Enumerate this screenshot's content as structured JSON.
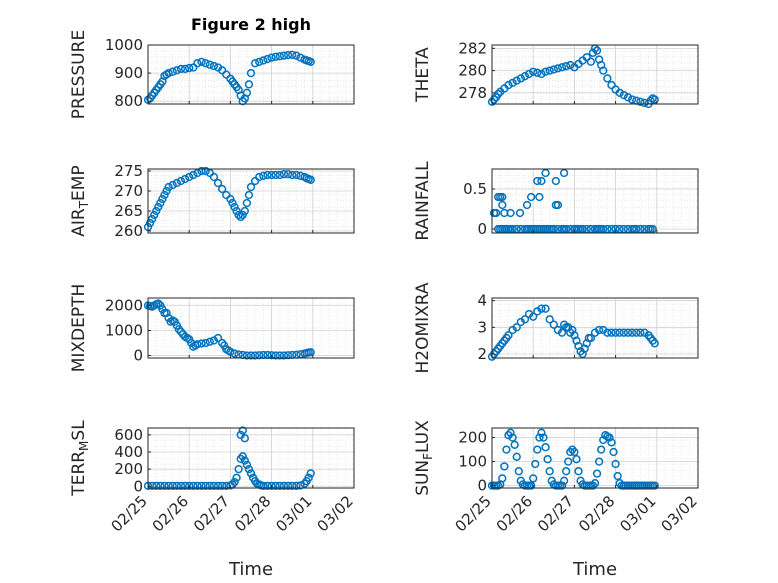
{
  "figure": {
    "title": "Figure 2 high"
  },
  "chart_data": [
    {
      "type": "scatter",
      "ylabel": "PRESSURE",
      "ylim": [
        790,
        1000
      ],
      "yticks": [
        "1000",
        "900",
        "800"
      ],
      "ytick_values": [
        1000,
        900,
        800
      ],
      "xlabel": "",
      "xlim": [
        "02/25",
        "03/02"
      ],
      "grid": true,
      "marker_color": "#0072BD",
      "x": [
        0.0,
        0.05,
        0.1,
        0.15,
        0.2,
        0.25,
        0.3,
        0.35,
        0.4,
        0.45,
        0.5,
        0.6,
        0.7,
        0.8,
        0.9,
        1.0,
        1.1,
        1.2,
        1.3,
        1.4,
        1.5,
        1.6,
        1.7,
        1.8,
        1.9,
        2.0,
        2.05,
        2.1,
        2.15,
        2.2,
        2.25,
        2.3,
        2.35,
        2.4,
        2.45,
        2.5,
        2.6,
        2.7,
        2.8,
        2.9,
        3.0,
        3.1,
        3.2,
        3.3,
        3.4,
        3.5,
        3.6,
        3.7,
        3.8,
        3.85,
        3.9,
        3.95
      ],
      "y": [
        805,
        810,
        820,
        830,
        840,
        850,
        860,
        870,
        890,
        895,
        900,
        905,
        910,
        915,
        915,
        918,
        920,
        935,
        940,
        935,
        930,
        925,
        920,
        910,
        895,
        880,
        870,
        860,
        850,
        840,
        820,
        800,
        810,
        830,
        860,
        900,
        935,
        940,
        945,
        950,
        955,
        958,
        960,
        962,
        964,
        965,
        962,
        955,
        948,
        945,
        943,
        940
      ]
    },
    {
      "type": "scatter",
      "ylabel": "THETA",
      "ylim": [
        277,
        282.3
      ],
      "yticks": [
        "282",
        "280",
        "278"
      ],
      "ytick_values": [
        282,
        280,
        278
      ],
      "xlabel": "",
      "xlim": [
        "02/25",
        "03/02"
      ],
      "grid": true,
      "marker_color": "#0072BD",
      "x": [
        0.0,
        0.05,
        0.1,
        0.15,
        0.2,
        0.3,
        0.4,
        0.5,
        0.6,
        0.7,
        0.8,
        0.9,
        1.0,
        1.1,
        1.2,
        1.3,
        1.4,
        1.5,
        1.6,
        1.7,
        1.8,
        1.9,
        2.0,
        2.1,
        2.2,
        2.3,
        2.4,
        2.45,
        2.5,
        2.55,
        2.6,
        2.65,
        2.7,
        2.8,
        2.9,
        3.0,
        3.1,
        3.2,
        3.3,
        3.4,
        3.5,
        3.6,
        3.7,
        3.8,
        3.85,
        3.9,
        3.95
      ],
      "y": [
        277.2,
        277.4,
        277.6,
        277.9,
        278.1,
        278.4,
        278.7,
        278.9,
        279.1,
        279.3,
        279.5,
        279.7,
        279.9,
        279.8,
        279.7,
        279.9,
        280.0,
        280.1,
        280.2,
        280.3,
        280.4,
        280.5,
        280.3,
        280.6,
        280.9,
        281.2,
        280.8,
        281.6,
        282.0,
        281.8,
        281.0,
        280.5,
        280.0,
        279.3,
        278.7,
        278.3,
        278.0,
        277.8,
        277.6,
        277.4,
        277.3,
        277.2,
        277.1,
        277.0,
        277.3,
        277.5,
        277.4
      ]
    },
    {
      "type": "scatter",
      "ylabel": "AIR_TEMP",
      "ylim": [
        259.5,
        275.5
      ],
      "yticks": [
        "275",
        "270",
        "265",
        "260"
      ],
      "ytick_values": [
        275,
        270,
        265,
        260
      ],
      "xlabel": "",
      "xlim": [
        "02/25",
        "03/02"
      ],
      "grid": true,
      "marker_color": "#0072BD",
      "x": [
        0.0,
        0.05,
        0.1,
        0.15,
        0.2,
        0.25,
        0.3,
        0.35,
        0.4,
        0.45,
        0.5,
        0.6,
        0.7,
        0.8,
        0.9,
        1.0,
        1.1,
        1.2,
        1.3,
        1.4,
        1.5,
        1.6,
        1.7,
        1.8,
        1.9,
        2.0,
        2.05,
        2.1,
        2.15,
        2.2,
        2.25,
        2.3,
        2.35,
        2.4,
        2.45,
        2.5,
        2.6,
        2.7,
        2.8,
        2.9,
        3.0,
        3.1,
        3.2,
        3.3,
        3.4,
        3.5,
        3.6,
        3.7,
        3.8,
        3.85,
        3.9,
        3.95
      ],
      "y": [
        261,
        262,
        263,
        264,
        265,
        266,
        267,
        268,
        269,
        270,
        271,
        271.5,
        272,
        272.5,
        273,
        273.5,
        274,
        274.5,
        275,
        275,
        274.5,
        273.5,
        272,
        270.5,
        269,
        268,
        267,
        266,
        265,
        264,
        263.5,
        264,
        265,
        267,
        269,
        271,
        272.5,
        273.5,
        273.8,
        274,
        274,
        274,
        274,
        274.2,
        274.2,
        274,
        274,
        273.8,
        273.5,
        273.2,
        273,
        272.8
      ]
    },
    {
      "type": "scatter",
      "ylabel": "RAINFALL",
      "ylim": [
        -0.05,
        0.75
      ],
      "yticks": [
        "0.5",
        "0"
      ],
      "ytick_values": [
        0.5,
        0
      ],
      "xlabel": "",
      "xlim": [
        "02/25",
        "03/02"
      ],
      "grid": true,
      "marker_color": "#0072BD",
      "x": [
        0.05,
        0.1,
        0.15,
        0.2,
        0.25,
        0.3,
        0.35,
        0.4,
        0.5,
        0.6,
        0.7,
        0.8,
        0.9,
        1.0,
        1.1,
        1.2,
        1.3,
        1.4,
        1.5,
        1.6,
        1.7,
        1.8,
        1.9,
        2.0,
        2.1,
        2.2,
        2.3,
        2.4,
        2.5,
        2.6,
        2.7,
        2.8,
        2.9,
        3.0,
        3.1,
        3.2,
        3.3,
        3.4,
        3.5,
        3.6,
        3.7,
        3.8,
        3.9,
        0.15,
        0.2,
        0.25,
        0.3,
        0.35,
        0.45,
        0.6,
        0.85,
        0.95,
        1.05,
        1.15,
        1.25,
        1.35,
        1.45,
        1.5,
        1.7,
        1.75,
        1.8,
        2.0,
        2.05,
        2.15,
        2.2,
        2.4,
        2.55,
        2.6,
        2.65,
        3.0,
        3.45,
        3.6,
        3.85
      ],
      "y": [
        0.2,
        0.2,
        0.4,
        0.4,
        0.3,
        0.2,
        0,
        0,
        0,
        0,
        0,
        0,
        0,
        0,
        0,
        0,
        0,
        0,
        0,
        0,
        0,
        0,
        0,
        0,
        0,
        0,
        0,
        0,
        0,
        0,
        0,
        0,
        0,
        0,
        0,
        0,
        0,
        0,
        0,
        0,
        0,
        0,
        0,
        0,
        0,
        0,
        0,
        0,
        0,
        0,
        0,
        0,
        0,
        0,
        0,
        0,
        0,
        0,
        0,
        0,
        0,
        0,
        0,
        0,
        0,
        0,
        0,
        0,
        0,
        0,
        0,
        0,
        0
      ],
      "extra_points": [
        [
          0.25,
          0.4
        ],
        [
          0.45,
          0.2
        ],
        [
          0.68,
          0.2
        ],
        [
          0.85,
          0.3
        ],
        [
          0.95,
          0.4
        ],
        [
          1.1,
          0.6
        ],
        [
          1.2,
          0.6
        ],
        [
          1.3,
          0.7
        ],
        [
          1.55,
          0.3
        ],
        [
          1.6,
          0.3
        ],
        [
          1.75,
          0.7
        ],
        [
          1.55,
          0.6
        ],
        [
          1.15,
          0.4
        ]
      ]
    },
    {
      "type": "scatter",
      "ylabel": "MIXDEPTH",
      "ylim": [
        -100,
        2300
      ],
      "yticks": [
        "2000",
        "1000",
        "0"
      ],
      "ytick_values": [
        2000,
        1000,
        0
      ],
      "xlabel": "",
      "xlim": [
        "02/25",
        "03/02"
      ],
      "grid": true,
      "marker_color": "#0072BD",
      "x": [
        0.0,
        0.05,
        0.1,
        0.15,
        0.2,
        0.25,
        0.3,
        0.35,
        0.4,
        0.45,
        0.5,
        0.55,
        0.6,
        0.65,
        0.7,
        0.75,
        0.8,
        0.85,
        0.9,
        0.95,
        1.0,
        1.05,
        1.1,
        1.15,
        1.2,
        1.3,
        1.4,
        1.5,
        1.6,
        1.7,
        1.8,
        1.85,
        1.9,
        1.95,
        2.0,
        2.1,
        2.2,
        2.3,
        2.4,
        2.5,
        2.6,
        2.7,
        2.8,
        2.9,
        3.0,
        3.1,
        3.2,
        3.3,
        3.4,
        3.5,
        3.6,
        3.7,
        3.8,
        3.85,
        3.9,
        3.95
      ],
      "y": [
        2000,
        1980,
        1950,
        2000,
        2050,
        2080,
        2000,
        1850,
        1700,
        1700,
        1500,
        1350,
        1400,
        1350,
        1200,
        1050,
        950,
        850,
        750,
        700,
        650,
        500,
        350,
        400,
        450,
        480,
        500,
        550,
        600,
        700,
        500,
        400,
        250,
        200,
        150,
        80,
        40,
        20,
        0,
        0,
        0,
        10,
        20,
        20,
        10,
        0,
        0,
        0,
        10,
        20,
        30,
        50,
        80,
        100,
        120,
        130
      ]
    },
    {
      "type": "scatter",
      "ylabel": "H2OMIXRA",
      "ylim": [
        1.85,
        4.1
      ],
      "yticks": [
        "4",
        "3",
        "2"
      ],
      "ytick_values": [
        4,
        3,
        2
      ],
      "xlabel": "",
      "xlim": [
        "02/25",
        "03/02"
      ],
      "grid": true,
      "marker_color": "#0072BD",
      "x": [
        0.0,
        0.05,
        0.1,
        0.15,
        0.2,
        0.25,
        0.3,
        0.35,
        0.4,
        0.5,
        0.6,
        0.7,
        0.8,
        0.9,
        1.0,
        1.1,
        1.2,
        1.3,
        1.4,
        1.5,
        1.6,
        1.7,
        1.8,
        1.9,
        2.0,
        2.05,
        2.1,
        2.15,
        2.2,
        2.25,
        2.3,
        2.4,
        2.5,
        2.6,
        2.7,
        2.8,
        2.9,
        3.0,
        3.1,
        3.2,
        3.3,
        3.4,
        3.5,
        3.6,
        3.7,
        3.8,
        3.85,
        3.9,
        3.95,
        1.75,
        1.85,
        1.95,
        2.35
      ],
      "y": [
        1.9,
        2.0,
        2.1,
        2.2,
        2.3,
        2.4,
        2.5,
        2.6,
        2.7,
        2.9,
        3.0,
        3.2,
        3.3,
        3.5,
        3.4,
        3.6,
        3.7,
        3.7,
        3.3,
        3.1,
        2.9,
        2.8,
        3.0,
        2.8,
        2.7,
        2.5,
        2.3,
        2.1,
        2.0,
        2.2,
        2.4,
        2.6,
        2.8,
        2.9,
        2.9,
        2.8,
        2.8,
        2.8,
        2.8,
        2.8,
        2.8,
        2.8,
        2.8,
        2.8,
        2.8,
        2.7,
        2.6,
        2.5,
        2.4,
        3.1,
        3.0,
        2.9,
        2.6
      ]
    },
    {
      "type": "scatter",
      "ylabel": "TERR_MSL",
      "ylim": [
        -20,
        680
      ],
      "yticks": [
        "600",
        "400",
        "200",
        "0"
      ],
      "ytick_values": [
        600,
        400,
        200,
        0
      ],
      "xlabel": "Time",
      "xticks": [
        "02/25",
        "02/26",
        "02/27",
        "02/28",
        "03/01",
        "03/02"
      ],
      "xtick_values": [
        0,
        1,
        2,
        3,
        4,
        5
      ],
      "grid": true,
      "marker_color": "#0072BD",
      "x": [
        0.0,
        0.1,
        0.2,
        0.3,
        0.4,
        0.5,
        0.6,
        0.7,
        0.8,
        0.9,
        1.0,
        1.1,
        1.2,
        1.3,
        1.4,
        1.5,
        1.6,
        1.7,
        1.8,
        1.9,
        2.0,
        2.05,
        2.1,
        2.15,
        2.2,
        2.25,
        2.3,
        2.35,
        2.4,
        2.45,
        2.5,
        2.55,
        2.6,
        2.65,
        2.7,
        2.75,
        2.8,
        2.9,
        3.0,
        3.1,
        3.2,
        3.3,
        3.4,
        3.5,
        3.6,
        3.7,
        3.8,
        3.85,
        3.9,
        3.95,
        2.25,
        2.3,
        2.35
      ],
      "y": [
        5,
        5,
        5,
        5,
        5,
        5,
        5,
        5,
        5,
        5,
        5,
        5,
        5,
        5,
        5,
        5,
        5,
        5,
        5,
        5,
        10,
        20,
        50,
        100,
        200,
        320,
        350,
        300,
        250,
        200,
        150,
        100,
        60,
        30,
        20,
        10,
        5,
        5,
        5,
        5,
        5,
        5,
        5,
        5,
        5,
        10,
        30,
        60,
        100,
        150,
        600,
        650,
        560
      ]
    },
    {
      "type": "scatter",
      "ylabel": "SUN_FLUX",
      "ylim": [
        -10,
        240
      ],
      "yticks": [
        "200",
        "100",
        "0"
      ],
      "ytick_values": [
        200,
        100,
        0
      ],
      "xlabel": "Time",
      "xticks": [
        "02/25",
        "02/26",
        "02/27",
        "02/28",
        "03/01",
        "03/02"
      ],
      "xtick_values": [
        0,
        1,
        2,
        3,
        4,
        5
      ],
      "grid": true,
      "marker_color": "#0072BD",
      "x": [
        0.0,
        0.05,
        0.1,
        0.15,
        0.2,
        0.25,
        0.3,
        0.35,
        0.4,
        0.45,
        0.5,
        0.55,
        0.6,
        0.65,
        0.7,
        0.75,
        0.8,
        0.85,
        0.9,
        0.95,
        1.0,
        1.05,
        1.1,
        1.15,
        1.2,
        1.25,
        1.3,
        1.35,
        1.4,
        1.45,
        1.5,
        1.55,
        1.6,
        1.65,
        1.7,
        1.75,
        1.8,
        1.85,
        1.9,
        1.95,
        2.0,
        2.05,
        2.1,
        2.15,
        2.2,
        2.25,
        2.3,
        2.35,
        2.4,
        2.45,
        2.5,
        2.55,
        2.6,
        2.65,
        2.7,
        2.75,
        2.8,
        2.85,
        2.9,
        2.95,
        3.0,
        3.05,
        3.1,
        3.15,
        3.2,
        3.25,
        3.3,
        3.35,
        3.4,
        3.45,
        3.5,
        3.55,
        3.6,
        3.65,
        3.7,
        3.75,
        3.8,
        3.85,
        3.9,
        3.95
      ],
      "y": [
        0,
        0,
        0,
        0,
        5,
        30,
        80,
        150,
        210,
        220,
        200,
        170,
        120,
        60,
        20,
        5,
        0,
        0,
        0,
        0,
        30,
        90,
        150,
        200,
        220,
        200,
        160,
        110,
        60,
        20,
        5,
        0,
        0,
        0,
        0,
        20,
        60,
        100,
        140,
        150,
        140,
        110,
        60,
        20,
        5,
        0,
        0,
        0,
        0,
        0,
        10,
        50,
        100,
        150,
        190,
        210,
        205,
        200,
        180,
        140,
        90,
        40,
        10,
        0,
        0,
        0,
        0,
        0,
        0,
        0,
        0,
        0,
        0,
        0,
        0,
        0,
        0,
        0,
        0,
        0
      ]
    }
  ]
}
